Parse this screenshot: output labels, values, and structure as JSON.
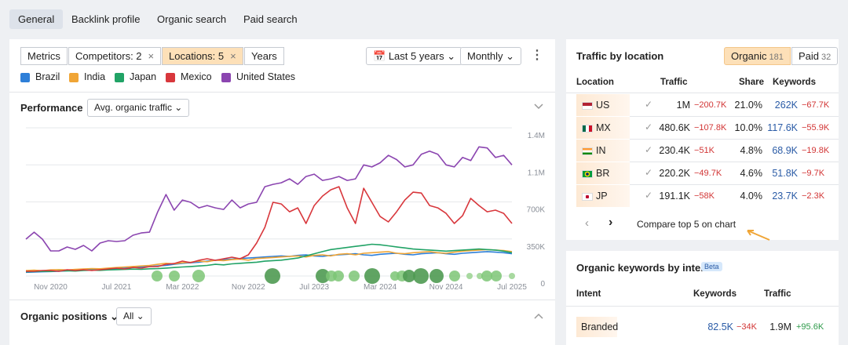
{
  "tabs": [
    "General",
    "Backlink profile",
    "Organic search",
    "Paid search"
  ],
  "toolbar": {
    "filters": [
      "Metrics",
      "Competitors: 2",
      "Locations: 5",
      "Years"
    ],
    "period": "Last 5 years",
    "granularity": "Monthly"
  },
  "performance": {
    "title": "Performance",
    "metric": "Avg. organic traffic"
  },
  "chart_data": {
    "type": "line",
    "categories": [
      null,
      null,
      null,
      "Nov 2020",
      null,
      null,
      null,
      null,
      null,
      null,
      null,
      "Jul 2021",
      null,
      null,
      null,
      null,
      null,
      null,
      null,
      "Mar 2022",
      null,
      null,
      null,
      null,
      null,
      null,
      null,
      "Nov 2022",
      null,
      null,
      null,
      null,
      null,
      null,
      null,
      "Jul 2023",
      null,
      null,
      null,
      null,
      null,
      null,
      null,
      "Mar 2024",
      null,
      null,
      null,
      null,
      null,
      null,
      null,
      "Nov 2024",
      null,
      null,
      null,
      null,
      null,
      null,
      null,
      "Jul 2025"
    ],
    "series": [
      {
        "name": "Brazil",
        "color": "#2e7fd8",
        "values": [
          35000,
          38000,
          40000,
          42000,
          45000,
          50000,
          55000,
          60000,
          58000,
          62000,
          65000,
          70000,
          75000,
          80000,
          85000,
          90000,
          95000,
          100000,
          110000,
          120000,
          125000,
          130000,
          140000,
          150000,
          155000,
          160000,
          165000,
          170000,
          175000,
          180000,
          185000,
          190000,
          185000,
          195000,
          200000,
          190000,
          185000,
          195000,
          200000,
          205000,
          210000,
          200000,
          195000,
          205000,
          210000,
          215000,
          205000,
          200000,
          210000,
          215000,
          220000,
          210000,
          205000,
          215000,
          220000,
          225000,
          230000,
          225000,
          220000,
          210000
        ]
      },
      {
        "name": "India",
        "color": "#f0a536",
        "values": [
          52000,
          55000,
          50000,
          58000,
          60000,
          57000,
          62000,
          66000,
          70000,
          68000,
          75000,
          80000,
          85000,
          90000,
          95000,
          100000,
          110000,
          120000,
          115000,
          125000,
          130000,
          140000,
          135000,
          150000,
          145000,
          155000,
          160000,
          150000,
          165000,
          170000,
          175000,
          180000,
          185000,
          190000,
          180000,
          195000,
          200000,
          190000,
          205000,
          210000,
          200000,
          215000,
          220000,
          225000,
          230000,
          215000,
          210000,
          220000,
          225000,
          230000,
          220000,
          215000,
          225000,
          235000,
          240000,
          245000,
          250000,
          245000,
          240000,
          230000
        ]
      },
      {
        "name": "Japan",
        "color": "#21a366",
        "values": [
          40000,
          42000,
          45000,
          43000,
          48000,
          50000,
          47000,
          52000,
          55000,
          53000,
          58000,
          60000,
          62000,
          65000,
          63000,
          68000,
          70000,
          75000,
          80000,
          85000,
          90000,
          95000,
          100000,
          110000,
          105000,
          115000,
          120000,
          125000,
          130000,
          140000,
          145000,
          150000,
          160000,
          170000,
          190000,
          210000,
          230000,
          250000,
          260000,
          270000,
          280000,
          290000,
          300000,
          295000,
          285000,
          275000,
          265000,
          255000,
          250000,
          245000,
          240000,
          235000,
          240000,
          245000,
          250000,
          255000,
          250000,
          245000,
          235000,
          220000
        ]
      },
      {
        "name": "Mexico",
        "color": "#d8373c",
        "values": [
          44400,
          44400,
          51800,
          51800,
          44400,
          59200,
          51800,
          59200,
          51800,
          59200,
          66600,
          74000,
          66600,
          81400,
          74000,
          88800,
          88800,
          111000,
          118000,
          141000,
          126000,
          148000,
          163000,
          148000,
          163000,
          178000,
          163000,
          200000,
          311000,
          459000,
          696000,
          681000,
          607000,
          644000,
          496000,
          666000,
          755000,
          814000,
          844000,
          644000,
          496000,
          829000,
          696000,
          562000,
          511000,
          607000,
          718000,
          792000,
          784000,
          666000,
          644000,
          592000,
          496000,
          570000,
          733000,
          666000,
          607000,
          622000,
          592000,
          496000
        ]
      },
      {
        "name": "United States",
        "color": "#8b45b0",
        "values": [
          348000,
          414000,
          348000,
          237000,
          237000,
          274000,
          252000,
          289000,
          237000,
          311000,
          333000,
          326000,
          333000,
          385000,
          407000,
          414000,
          607000,
          770000,
          622000,
          718000,
          696000,
          644000,
          666000,
          644000,
          629000,
          718000,
          644000,
          681000,
          696000,
          844000,
          866000,
          881000,
          918000,
          866000,
          940000,
          962000,
          903000,
          918000,
          940000,
          903000,
          918000,
          1050000,
          1030000,
          1070000,
          1140000,
          1100000,
          1030000,
          1050000,
          1150000,
          1180000,
          1150000,
          1050000,
          1030000,
          1120000,
          1090000,
          1220000,
          1210000,
          1120000,
          1140000,
          1050000
        ]
      }
    ],
    "ylim": [
      0,
      1400000
    ],
    "yticks": [
      0,
      {
        "value": 350000,
        "label": "350K"
      },
      {
        "value": 700000,
        "label": "700K"
      },
      {
        "value": 1050000,
        "label": "1.1M"
      },
      {
        "value": 1400000,
        "label": "1.4M"
      }
    ],
    "grid": true
  },
  "organic_positions": {
    "title": "Organic positions",
    "filter": "All"
  },
  "traffic_by_location": {
    "title": "Traffic by location",
    "tabs": [
      {
        "label": "Organic",
        "count": 181
      },
      {
        "label": "Paid",
        "count": 32
      }
    ],
    "columns": [
      "Location",
      "Traffic",
      "Share",
      "Keywords"
    ],
    "rows": [
      {
        "location": "US",
        "traffic": "1M",
        "traffic_change": "−200.7K",
        "share": "21.0%",
        "keywords": "262K",
        "keywords_change": "−67.7K"
      },
      {
        "location": "MX",
        "traffic": "480.6K",
        "traffic_change": "−107.8K",
        "share": "10.0%",
        "keywords": "117.6K",
        "keywords_change": "−55.9K"
      },
      {
        "location": "IN",
        "traffic": "230.4K",
        "traffic_change": "−51K",
        "share": "4.8%",
        "keywords": "68.9K",
        "keywords_change": "−19.8K"
      },
      {
        "location": "BR",
        "traffic": "220.2K",
        "traffic_change": "−49.7K",
        "share": "4.6%",
        "keywords": "51.8K",
        "keywords_change": "−9.7K"
      },
      {
        "location": "JP",
        "traffic": "191.1K",
        "traffic_change": "−58K",
        "share": "4.0%",
        "keywords": "23.7K",
        "keywords_change": "−2.3K"
      }
    ],
    "footer": "Compare top 5 on chart"
  },
  "keywords_by_intent": {
    "title": "Organic keywords by intent",
    "badge": "Beta",
    "columns": [
      "Intent",
      "Keywords",
      "Traffic"
    ],
    "rows": [
      {
        "intent": "Branded",
        "keywords": "82.5K",
        "keywords_change": "−34K",
        "traffic": "1.9M",
        "traffic_change": "+95.6K"
      }
    ]
  }
}
